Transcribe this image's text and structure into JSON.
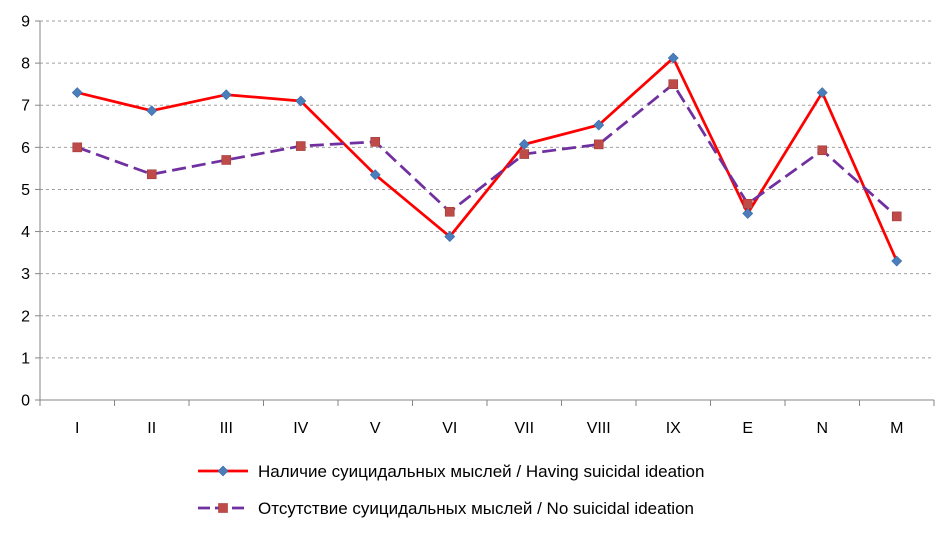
{
  "chart_data": {
    "type": "line",
    "title": "",
    "xlabel": "",
    "ylabel": "",
    "categories": [
      "I",
      "II",
      "III",
      "IV",
      "V",
      "VI",
      "VII",
      "VIII",
      "IX",
      "E",
      "N",
      "M"
    ],
    "ylim": [
      0,
      9
    ],
    "yticks": [
      0,
      1,
      2,
      3,
      4,
      5,
      6,
      7,
      8,
      9
    ],
    "grid": "horizontal-dashed",
    "legend_position": "bottom",
    "series": [
      {
        "name": "Наличие суицидальных мыслей / Having suicidal ideation",
        "values": [
          7.3,
          6.87,
          7.25,
          7.1,
          5.35,
          3.88,
          6.07,
          6.53,
          8.12,
          4.43,
          7.3,
          3.3
        ],
        "color": "#ff0000",
        "marker_color": "#4a7ebb",
        "line_style": "solid",
        "marker": "diamond"
      },
      {
        "name": "Отсутствие суицидальных мыслей / No suicidal ideation",
        "values": [
          6.0,
          5.36,
          5.7,
          6.03,
          6.13,
          4.47,
          5.84,
          6.07,
          7.5,
          4.66,
          5.93,
          4.36
        ],
        "color": "#7030a0",
        "marker_color": "#be4b48",
        "line_style": "dashed",
        "marker": "square"
      }
    ]
  }
}
